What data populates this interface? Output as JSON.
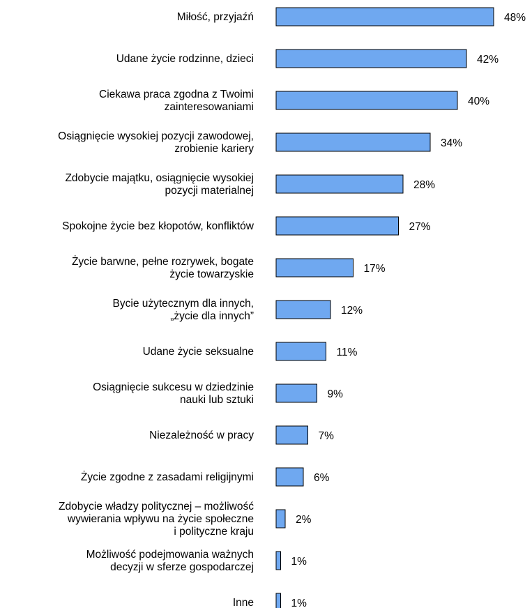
{
  "chart_data": {
    "type": "bar",
    "orientation": "horizontal",
    "categories": [
      [
        "Miłość, przyjaźń"
      ],
      [
        "Udane życie rodzinne, dzieci"
      ],
      [
        "Ciekawa praca zgodna z Twoimi",
        "zainteresowaniami"
      ],
      [
        "Osiągnięcie wysokiej pozycji zawodowej,",
        "zrobienie kariery"
      ],
      [
        "Zdobycie majątku, osiągnięcie wysokiej",
        "pozycji materialnej"
      ],
      [
        "Spokojne życie bez kłopotów, konfliktów"
      ],
      [
        "Życie barwne, pełne rozrywek, bogate",
        "życie towarzyskie"
      ],
      [
        "Bycie użytecznym dla innych,",
        "„życie dla innych”"
      ],
      [
        "Udane życie seksualne"
      ],
      [
        "Osiągnięcie sukcesu w dziedzinie",
        "nauki lub sztuki"
      ],
      [
        "Niezależność w pracy"
      ],
      [
        "Życie zgodne z zasadami religijnymi"
      ],
      [
        "Zdobycie władzy politycznej – możliwość",
        "wywierania wpływu na życie społeczne",
        "i polityczne kraju"
      ],
      [
        "Możliwość podejmowania ważnych",
        "decyzji w sferze gospodarczej"
      ],
      [
        "Inne"
      ]
    ],
    "values": [
      48,
      42,
      40,
      34,
      28,
      27,
      17,
      12,
      11,
      9,
      7,
      6,
      2,
      1,
      1
    ],
    "value_labels": [
      "48%",
      "42%",
      "40%",
      "34%",
      "28%",
      "27%",
      "17%",
      "12%",
      "11%",
      "9%",
      "7%",
      "6%",
      "2%",
      "1%",
      "1%"
    ],
    "unit": "%",
    "xlim": [
      0,
      50
    ],
    "grid": false,
    "legend": "none",
    "colors": {
      "bar_fill": "#6fa8f0",
      "bar_stroke": "#000000"
    }
  }
}
